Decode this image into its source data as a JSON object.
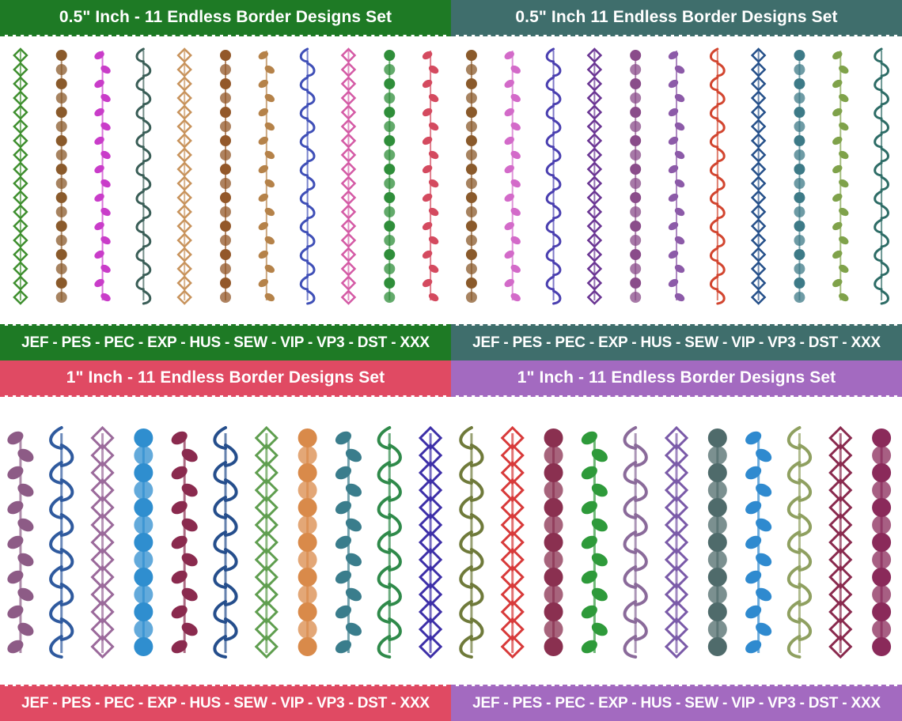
{
  "panels": [
    {
      "title": "0.5\" Inch - 11 Endless Border Designs Set",
      "formats": "JEF - PES - PEC - EXP - HUS - SEW - VIP - VP3 - DST - XXX",
      "title_color": "#1e7a25",
      "formats_color": "#1e7a25",
      "stripe_colors": [
        "#3f8f2f",
        "#8a5a2b",
        "#c93cc9",
        "#3a5e57",
        "#c8935c",
        "#93582a",
        "#b58249",
        "#3f4fb7",
        "#d45aa5",
        "#2f8e3a",
        "#d44a5f"
      ]
    },
    {
      "title": "0.5\" Inch 11 Endless Border Designs Set",
      "formats": "JEF - PES - PEC - EXP - HUS - SEW - VIP - VP3 - DST - XXX",
      "title_color": "#3f6e6c",
      "formats_color": "#3f6e6c",
      "stripe_colors": [
        "#8a5a2b",
        "#d36ac9",
        "#4a3fb0",
        "#6a3593",
        "#8a4c8a",
        "#8c5aa8",
        "#d2452f",
        "#25508a",
        "#3d7a87",
        "#7fa24a",
        "#2d6c66"
      ]
    },
    {
      "title": "1\" Inch - 11 Endless Border Designs Set",
      "formats": "JEF - PES - PEC - EXP - HUS - SEW - VIP - VP3 - DST - XXX",
      "title_color": "#e04a63",
      "formats_color": "#e04a63",
      "stripe_colors": [
        "#8d5b86",
        "#2f5a9e",
        "#9b6a9b",
        "#2f8ecf",
        "#8a2a4e",
        "#254e8c",
        "#5f9e4f",
        "#d98a4a",
        "#3a7d8c",
        "#2f8a4a",
        "#3d2fa8"
      ]
    },
    {
      "title": "1\" Inch - 11 Endless Border Designs Set",
      "formats": "JEF - PES - PEC - EXP - HUS - SEW - VIP - VP3 - DST - XXX",
      "title_color": "#a36ac0",
      "formats_color": "#a36ac0",
      "stripe_colors": [
        "#6f7a3a",
        "#d83a3a",
        "#8a3050",
        "#2e9a3a",
        "#8a6a9a",
        "#7a5aa8",
        "#4f6b6b",
        "#2f8acf",
        "#8fa060",
        "#8a2a4e",
        "#8a2a5a"
      ]
    }
  ]
}
